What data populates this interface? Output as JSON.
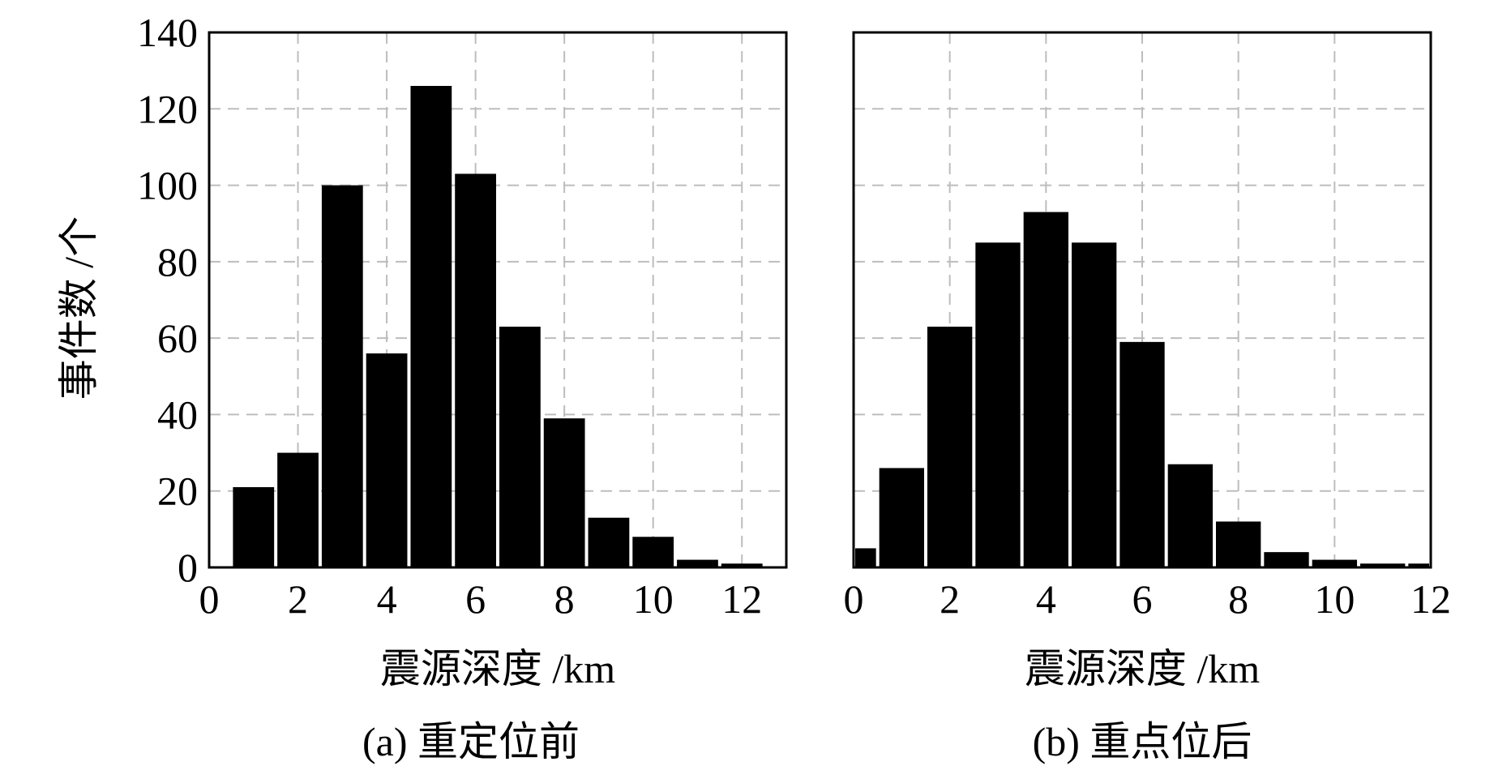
{
  "colors": {
    "bar": "#000000",
    "grid": "#bdbdbd",
    "frame": "#000000",
    "background": "#ffffff"
  },
  "shared": {
    "ylabel": "事件数 /个"
  },
  "chart_data": [
    {
      "type": "bar",
      "title": "(a) 重定位前",
      "xlabel": "震源深度 /km",
      "ylabel": "事件数 /个",
      "xlim": [
        0,
        13
      ],
      "ylim": [
        0,
        140
      ],
      "xticks": [
        0,
        2,
        4,
        6,
        8,
        10,
        12
      ],
      "yticks": [
        0,
        20,
        40,
        60,
        80,
        100,
        120,
        140
      ],
      "grid": true,
      "bin_width": 1,
      "x": [
        1,
        2,
        3,
        4,
        5,
        6,
        7,
        8,
        9,
        10,
        11,
        12
      ],
      "values": [
        21,
        30,
        100,
        56,
        126,
        103,
        63,
        39,
        13,
        8,
        2,
        1
      ]
    },
    {
      "type": "bar",
      "title": "(b) 重点位后",
      "xlabel": "震源深度 /km",
      "ylabel": "",
      "xlim": [
        0,
        12
      ],
      "ylim": [
        0,
        140
      ],
      "xticks": [
        0,
        2,
        4,
        6,
        8,
        10,
        12
      ],
      "yticks": [
        0,
        20,
        40,
        60,
        80,
        100,
        120,
        140
      ],
      "grid": true,
      "bin_width": 1,
      "x": [
        0,
        1,
        2,
        3,
        4,
        5,
        6,
        7,
        8,
        9,
        10,
        11,
        12
      ],
      "values": [
        5,
        26,
        63,
        85,
        93,
        85,
        59,
        27,
        12,
        4,
        2,
        1,
        1
      ]
    }
  ]
}
